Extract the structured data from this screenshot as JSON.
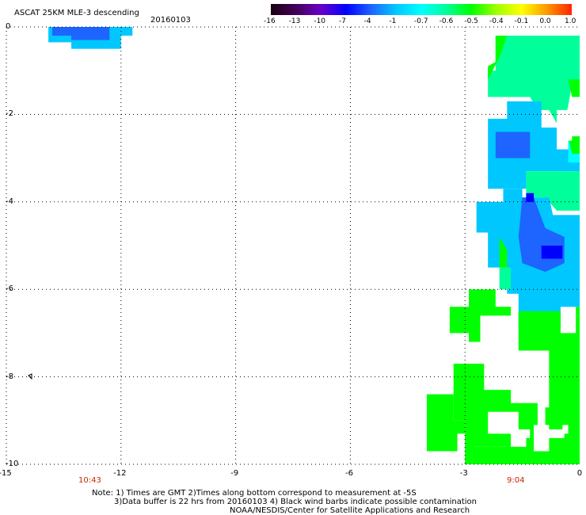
{
  "header": {
    "title": "ASCAT 25KM MLE-3 descending",
    "date": "20160103"
  },
  "colorbar": {
    "labels": [
      "-16",
      "-13",
      "-10",
      "-7",
      "-4",
      "-1",
      "-0.7",
      "-0.6",
      "-0.5",
      "-0.4",
      "-0.1",
      "0.0",
      "1.0"
    ],
    "colors": [
      "#1a0010",
      "#44005a",
      "#6a00c8",
      "#0000ff",
      "#1e64ff",
      "#00c8ff",
      "#00ffff",
      "#00ff9a",
      "#00ff00",
      "#a0ff00",
      "#ffff00",
      "#ff9900",
      "#ff2200"
    ]
  },
  "axes": {
    "x_ticks": [
      "-15",
      "-12",
      "-9",
      "-6",
      "-3",
      "0"
    ],
    "y_ticks": [
      "0",
      "-2",
      "-4",
      "-6",
      "-8",
      "-10"
    ],
    "xlim": [
      -15,
      0
    ],
    "ylim": [
      -10,
      0
    ]
  },
  "times": {
    "left": "10:43",
    "right": "9:04"
  },
  "notes": {
    "line1": "Note: 1) Times are GMT 2)Times along bottom correspond to measurement at -5S",
    "line2": "3)Data buffer is 22 hrs from 20160103 4) Black wind barbs indicate possible contamination",
    "line3": "NOAA/NESDIS/Center for Satellite Applications and Research"
  },
  "swaths": [
    {
      "fill": "#00c8ff",
      "polygon": [
        [
          -13.9,
          0
        ],
        [
          -11.7,
          0
        ],
        [
          -11.7,
          -0.2
        ],
        [
          -12.0,
          -0.2
        ],
        [
          -12.0,
          -0.5
        ],
        [
          -13.3,
          -0.5
        ],
        [
          -13.3,
          -0.35
        ],
        [
          -13.9,
          -0.35
        ]
      ]
    },
    {
      "fill": "#1e64ff",
      "polygon": [
        [
          -13.8,
          0
        ],
        [
          -12.3,
          0
        ],
        [
          -12.3,
          -0.3
        ],
        [
          -13.3,
          -0.3
        ],
        [
          -13.3,
          -0.2
        ],
        [
          -13.8,
          -0.2
        ]
      ]
    },
    {
      "fill": "#00ff9a",
      "polygon": [
        [
          -2.2,
          -0.2
        ],
        [
          0,
          -0.2
        ],
        [
          0,
          -1.3
        ],
        [
          -0.2,
          -1.3
        ],
        [
          -0.3,
          -1.8
        ],
        [
          -0.4,
          -2.2
        ],
        [
          -0.6,
          -2.2
        ],
        [
          -0.8,
          -1.9
        ],
        [
          -1.1,
          -1.9
        ],
        [
          -1.3,
          -1.6
        ],
        [
          -2.4,
          -1.6
        ],
        [
          -2.4,
          -1.0
        ],
        [
          -2.2,
          -1.0
        ]
      ]
    },
    {
      "fill": "#00ff00",
      "polygon": [
        [
          -2.2,
          -0.2
        ],
        [
          -1.9,
          -0.2
        ],
        [
          -2.1,
          -0.7
        ],
        [
          -2.4,
          -1.2
        ],
        [
          -2.4,
          -0.9
        ],
        [
          -2.2,
          -0.8
        ]
      ]
    },
    {
      "fill": "#00ff00",
      "polygon": [
        [
          -0.3,
          -1.2
        ],
        [
          0,
          -1.2
        ],
        [
          0,
          -1.6
        ],
        [
          -0.2,
          -1.6
        ]
      ]
    },
    {
      "fill": "#00c8ff",
      "polygon": [
        [
          -2.4,
          -2.1
        ],
        [
          -1.9,
          -2.1
        ],
        [
          -1.9,
          -1.7
        ],
        [
          -1.0,
          -1.7
        ],
        [
          -1.0,
          -2.3
        ],
        [
          -0.6,
          -2.3
        ],
        [
          -0.6,
          -2.8
        ],
        [
          0,
          -2.8
        ],
        [
          0,
          -3.3
        ],
        [
          -1.4,
          -3.3
        ],
        [
          -1.4,
          -3.7
        ],
        [
          -2.4,
          -3.7
        ]
      ]
    },
    {
      "fill": "#00ffff",
      "polygon": [
        [
          -0.3,
          -2.5
        ],
        [
          0,
          -2.5
        ],
        [
          0,
          -3.1
        ],
        [
          -0.3,
          -3.1
        ]
      ]
    },
    {
      "fill": "#00ff9a",
      "polygon": [
        [
          -1.4,
          -3.3
        ],
        [
          0,
          -3.3
        ],
        [
          0,
          -4.2
        ],
        [
          -0.6,
          -4.2
        ],
        [
          -0.9,
          -3.9
        ],
        [
          -1.4,
          -3.9
        ]
      ]
    },
    {
      "fill": "#00ff00",
      "polygon": [
        [
          -0.3,
          -2.5
        ],
        [
          0,
          -2.5
        ],
        [
          0,
          -2.9
        ],
        [
          -0.2,
          -2.9
        ]
      ]
    },
    {
      "fill": "#1e64ff",
      "polygon": [
        [
          -2.2,
          -2.4
        ],
        [
          -1.3,
          -2.4
        ],
        [
          -1.3,
          -3.0
        ],
        [
          -2.2,
          -3.0
        ]
      ]
    },
    {
      "fill": "#00c8ff",
      "polygon": [
        [
          -2.7,
          -4.0
        ],
        [
          -2.0,
          -4.0
        ],
        [
          -2.0,
          -3.7
        ],
        [
          -1.5,
          -3.7
        ],
        [
          -1.5,
          -3.9
        ],
        [
          -0.8,
          -3.9
        ],
        [
          -0.7,
          -4.3
        ],
        [
          0,
          -4.3
        ],
        [
          0,
          -6.4
        ],
        [
          -0.5,
          -6.4
        ],
        [
          -0.5,
          -6.9
        ],
        [
          -1.6,
          -6.9
        ],
        [
          -1.6,
          -6.1
        ],
        [
          -1.9,
          -6.1
        ],
        [
          -1.9,
          -5.5
        ],
        [
          -2.4,
          -5.5
        ],
        [
          -2.4,
          -4.7
        ],
        [
          -2.7,
          -4.7
        ]
      ]
    },
    {
      "fill": "#1e64ff",
      "polygon": [
        [
          -1.5,
          -3.9
        ],
        [
          -1.2,
          -3.9
        ],
        [
          -0.9,
          -4.6
        ],
        [
          -0.4,
          -4.8
        ],
        [
          -0.4,
          -5.4
        ],
        [
          -0.9,
          -5.6
        ],
        [
          -1.5,
          -5.4
        ],
        [
          -1.6,
          -4.8
        ]
      ]
    },
    {
      "fill": "#0000ff",
      "polygon": [
        [
          -1.4,
          -3.8
        ],
        [
          -1.2,
          -3.8
        ],
        [
          -1.2,
          -4.0
        ],
        [
          -1.4,
          -4.0
        ]
      ]
    },
    {
      "fill": "#0000ff",
      "polygon": [
        [
          -1.0,
          -5.0
        ],
        [
          -0.45,
          -5.0
        ],
        [
          -0.45,
          -5.3
        ],
        [
          -1.0,
          -5.3
        ]
      ]
    },
    {
      "fill": "#00ff00",
      "polygon": [
        [
          -2.1,
          -4.8
        ],
        [
          -2.1,
          -5.5
        ],
        [
          -1.9,
          -5.5
        ],
        [
          -1.9,
          -5.1
        ]
      ]
    },
    {
      "fill": "#00ff9a",
      "polygon": [
        [
          -2.1,
          -5.5
        ],
        [
          -1.8,
          -5.5
        ],
        [
          -1.8,
          -6.0
        ],
        [
          -2.1,
          -6.0
        ]
      ]
    },
    {
      "fill": "#00ff00",
      "polygon": [
        [
          -3.4,
          -6.4
        ],
        [
          -2.9,
          -6.4
        ],
        [
          -2.9,
          -6.0
        ],
        [
          -2.2,
          -6.0
        ],
        [
          -2.2,
          -6.4
        ],
        [
          -1.8,
          -6.4
        ],
        [
          -1.8,
          -6.6
        ],
        [
          -2.6,
          -6.6
        ],
        [
          -2.6,
          -7.2
        ],
        [
          -2.9,
          -7.2
        ],
        [
          -2.9,
          -7.0
        ],
        [
          -3.4,
          -7.0
        ]
      ]
    },
    {
      "fill": "#00ff00",
      "polygon": [
        [
          -1.6,
          -6.5
        ],
        [
          -0.5,
          -6.5
        ],
        [
          -0.5,
          -7.0
        ],
        [
          -0.1,
          -7.0
        ],
        [
          -0.1,
          -6.6
        ],
        [
          0,
          -6.6
        ],
        [
          0,
          -7.4
        ],
        [
          -1.6,
          -7.4
        ]
      ]
    },
    {
      "fill": "#00ff00",
      "polygon": [
        [
          -0.1,
          -6.4
        ],
        [
          0,
          -6.4
        ],
        [
          0,
          -6.6
        ],
        [
          -0.1,
          -6.6
        ]
      ]
    },
    {
      "fill": "#00ff00",
      "polygon": [
        [
          -0.8,
          -7.4
        ],
        [
          0,
          -7.4
        ],
        [
          0,
          -9.5
        ],
        [
          -0.4,
          -9.5
        ],
        [
          -0.4,
          -9.2
        ],
        [
          -0.9,
          -9.2
        ],
        [
          -0.9,
          -8.7
        ],
        [
          -0.8,
          -8.7
        ]
      ]
    },
    {
      "fill": "#00ff00",
      "polygon": [
        [
          -3.3,
          -7.7
        ],
        [
          -2.5,
          -7.7
        ],
        [
          -2.5,
          -8.3
        ],
        [
          -1.8,
          -8.3
        ],
        [
          -1.8,
          -8.6
        ],
        [
          -1.1,
          -8.6
        ],
        [
          -1.1,
          -9.5
        ],
        [
          -1.3,
          -9.5
        ],
        [
          -1.3,
          -9.2
        ],
        [
          -1.8,
          -9.2
        ],
        [
          -1.8,
          -9.6
        ],
        [
          -2.8,
          -9.6
        ],
        [
          -2.8,
          -10
        ],
        [
          -3.0,
          -10
        ],
        [
          -3.0,
          -9.0
        ],
        [
          -3.3,
          -9.0
        ],
        [
          -3.3,
          -8.9
        ]
      ]
    },
    {
      "fill": "#00ff00",
      "polygon": [
        [
          -4.0,
          -8.4
        ],
        [
          -3.3,
          -8.4
        ],
        [
          -3.3,
          -9.0
        ],
        [
          -3.0,
          -9.0
        ],
        [
          -3.0,
          -9.3
        ],
        [
          -3.2,
          -9.3
        ],
        [
          -3.2,
          -9.7
        ],
        [
          -4.0,
          -9.7
        ]
      ]
    },
    {
      "fill": "#00ff00",
      "polygon": [
        [
          -2.8,
          -9.6
        ],
        [
          -1.4,
          -9.6
        ],
        [
          -1.4,
          -10
        ],
        [
          -2.8,
          -10
        ]
      ]
    },
    {
      "fill": "#00ff00",
      "polygon": [
        [
          -1.4,
          -9.4
        ],
        [
          0,
          -9.4
        ],
        [
          0,
          -10
        ],
        [
          -1.4,
          -10
        ]
      ]
    },
    {
      "fill": "#ffffff",
      "polygon": [
        [
          -1.2,
          -9.1
        ],
        [
          -0.8,
          -9.1
        ],
        [
          -0.8,
          -9.7
        ],
        [
          -1.2,
          -9.7
        ]
      ]
    },
    {
      "fill": "#ffffff",
      "polygon": [
        [
          -2.4,
          -8.8
        ],
        [
          -1.6,
          -8.8
        ],
        [
          -1.6,
          -9.3
        ],
        [
          -2.4,
          -9.3
        ]
      ]
    },
    {
      "fill": "#ffffff",
      "polygon": [
        [
          -0.6,
          -1.9
        ],
        [
          -0.2,
          -1.9
        ],
        [
          -0.2,
          -2.6
        ],
        [
          -0.6,
          -2.6
        ]
      ]
    },
    {
      "fill": "#ffffff",
      "polygon": [
        [
          -0.45,
          -9.1
        ],
        [
          -0.3,
          -9.1
        ],
        [
          -0.3,
          -9.3
        ],
        [
          -0.45,
          -9.3
        ]
      ]
    }
  ]
}
